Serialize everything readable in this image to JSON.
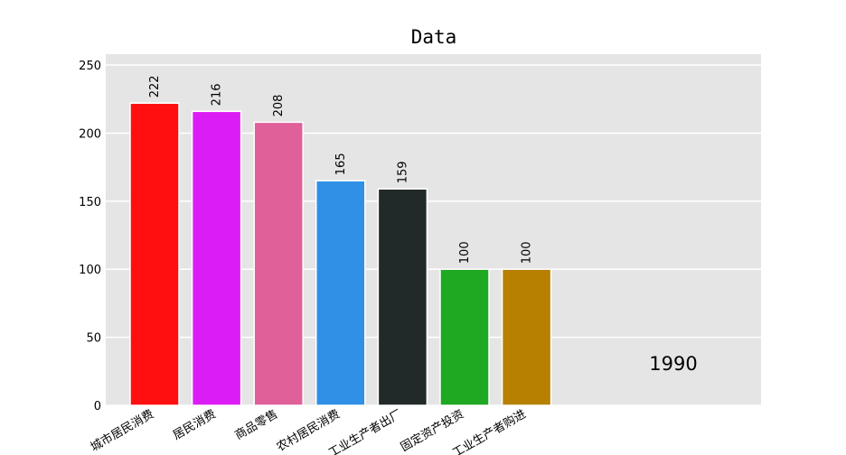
{
  "chart_data": {
    "type": "bar",
    "title": "Data",
    "categories": [
      "城市居民消费",
      "居民消费",
      "商品零售",
      "农村居民消费",
      "工业生产者出厂",
      "固定资产投资",
      "工业生产者购进"
    ],
    "values": [
      222,
      216,
      208,
      165,
      159,
      100,
      100
    ],
    "colors": [
      "#ff0f0f",
      "#dc1cf5",
      "#e0609a",
      "#2f90e6",
      "#212a28",
      "#1fa822",
      "#b78000"
    ],
    "ylim": [
      0,
      258
    ],
    "yticks": [
      0,
      50,
      100,
      150,
      200,
      250
    ],
    "grid": true,
    "annotation": "1990"
  }
}
